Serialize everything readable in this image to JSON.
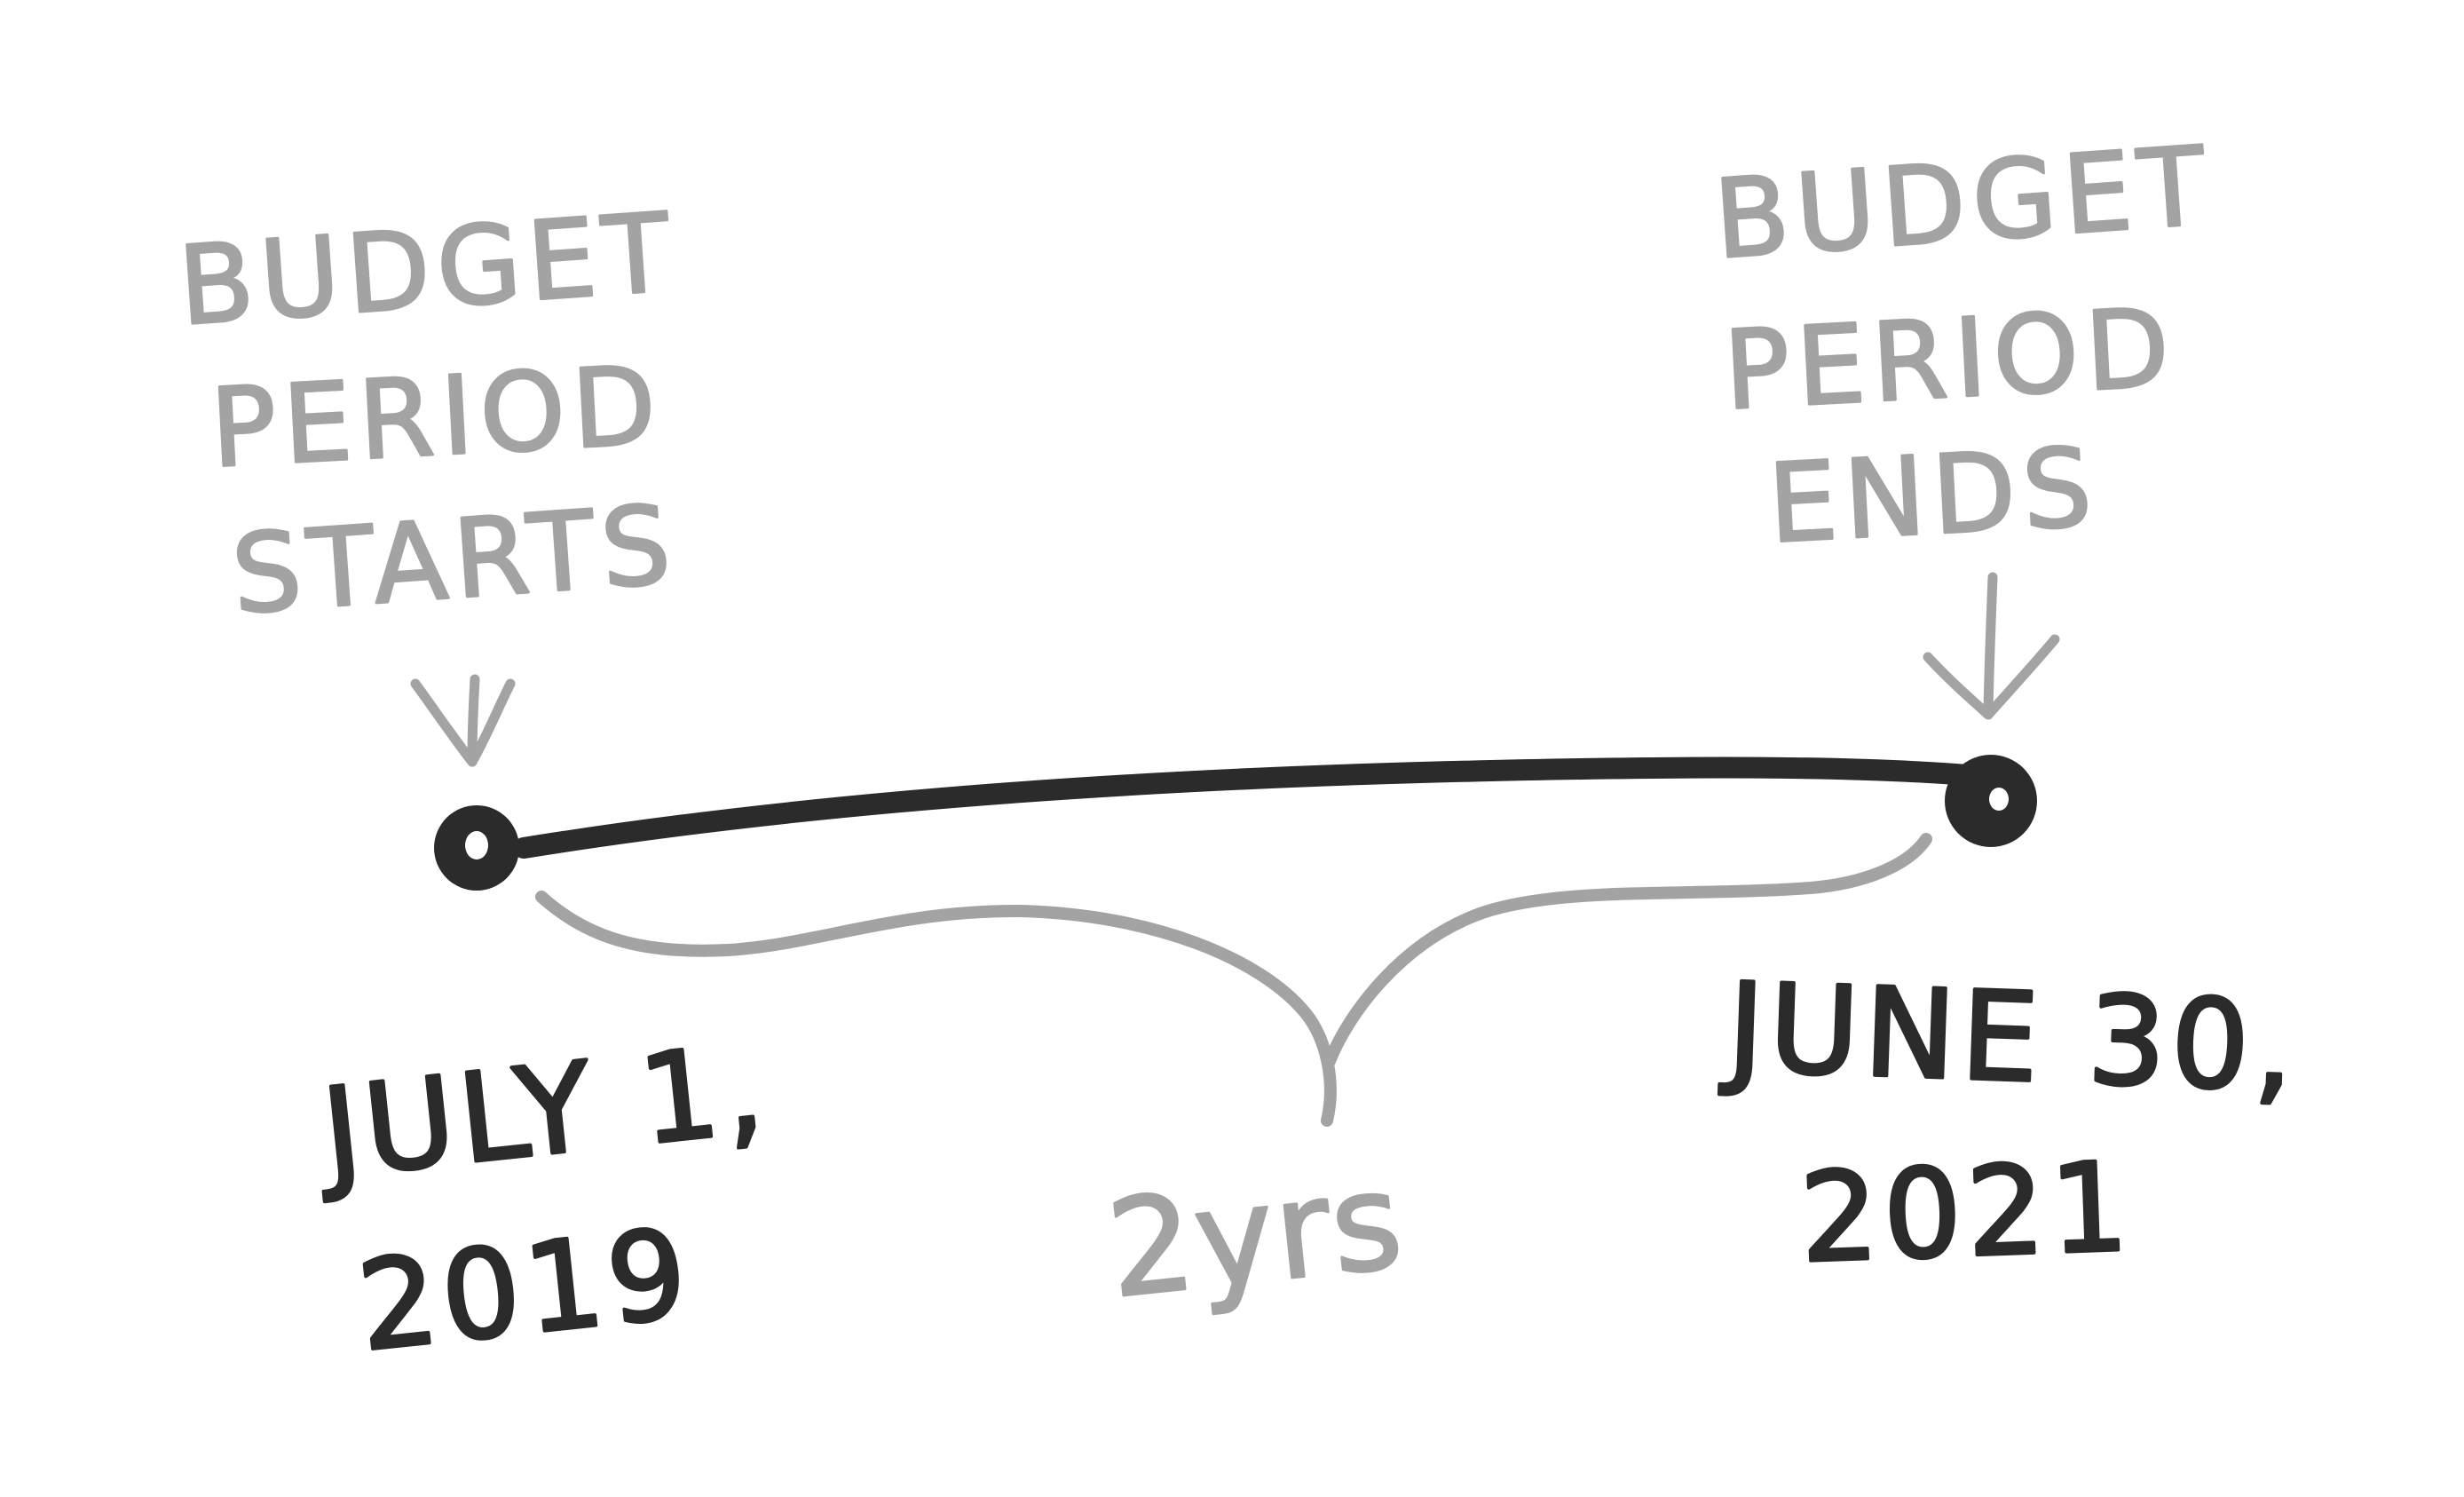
{
  "colors": {
    "background": "#ffffff",
    "annotation": "#a3a3a3",
    "timeline": "#2b2b2b"
  },
  "start": {
    "note_lines": [
      "BUDGET",
      "PERIOD",
      "STARTS"
    ],
    "date_lines": [
      "JULY 1,",
      "2019"
    ]
  },
  "end": {
    "note_lines": [
      "BUDGET",
      "PERIOD",
      "ENDS"
    ],
    "date_lines": [
      "JUNE 30,",
      "2021"
    ]
  },
  "duration": {
    "label": "2yrs"
  }
}
